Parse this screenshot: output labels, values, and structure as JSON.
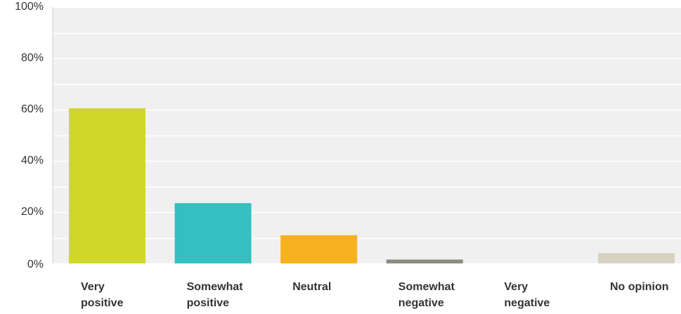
{
  "chart_data": {
    "type": "bar",
    "categories": [
      [
        "Very",
        "positive"
      ],
      [
        "Somewhat",
        "positive"
      ],
      [
        "Neutral"
      ],
      [
        "Somewhat",
        "negative"
      ],
      [
        "Very",
        "negative"
      ],
      [
        "No opinion"
      ]
    ],
    "values": [
      60.5,
      23.5,
      11,
      1.5,
      0,
      4
    ],
    "colors": [
      "#d0d62a",
      "#34bfc1",
      "#f7b020",
      "#8c8c7f",
      "#cccccc",
      "#d6d2c0"
    ],
    "yticks": [
      "0%",
      "20%",
      "40%",
      "60%",
      "80%",
      "100%"
    ],
    "ylim": [
      0,
      100
    ],
    "grid": true,
    "legend": "none"
  }
}
